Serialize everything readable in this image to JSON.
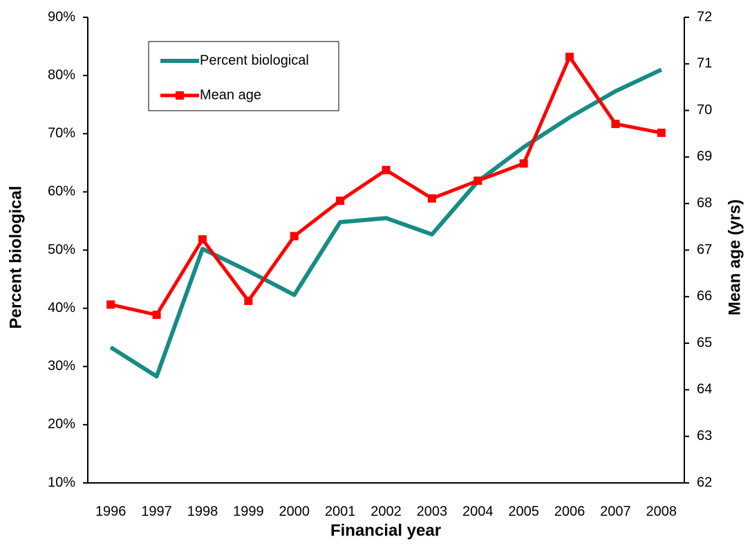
{
  "chart_data": {
    "type": "line",
    "x_label": "Financial year",
    "y_label": "Percent biological",
    "y2_label": "Mean age (yrs)",
    "categories": [
      "1996",
      "1997",
      "1998",
      "1999",
      "2000",
      "2001",
      "2002",
      "2003",
      "2004",
      "2005",
      "2006",
      "2007",
      "2008"
    ],
    "series": [
      {
        "name": "Percent biological",
        "color": "#168c86",
        "marker": "none",
        "values": [
          33.3,
          28.3,
          50.2,
          46.4,
          42.3,
          54.8,
          55.5,
          52.7,
          61.8,
          67.7,
          72.8,
          77.3,
          81.0
        ]
      },
      {
        "name": "Mean age",
        "color": "#ff0000",
        "marker": "square",
        "axis": "y2",
        "values": [
          65.83,
          65.61,
          67.23,
          65.91,
          67.3,
          68.06,
          68.72,
          68.11,
          68.49,
          68.86,
          71.15,
          69.71,
          69.52
        ]
      }
    ],
    "ylim": [
      10,
      90
    ],
    "yticks": [
      {
        "value": 10,
        "label": "10%"
      },
      {
        "value": 20,
        "label": "20%"
      },
      {
        "value": 30,
        "label": "30%"
      },
      {
        "value": 40,
        "label": "40%"
      },
      {
        "value": 50,
        "label": "50%"
      },
      {
        "value": 60,
        "label": "60%"
      },
      {
        "value": 70,
        "label": "70%"
      },
      {
        "value": 80,
        "label": "80%"
      },
      {
        "value": 90,
        "label": "90%"
      }
    ],
    "y2lim": [
      62,
      72
    ],
    "y2ticks": [
      62,
      63,
      64,
      65,
      66,
      67,
      68,
      69,
      70,
      71,
      72
    ],
    "grid": false,
    "legend": "upper left"
  }
}
